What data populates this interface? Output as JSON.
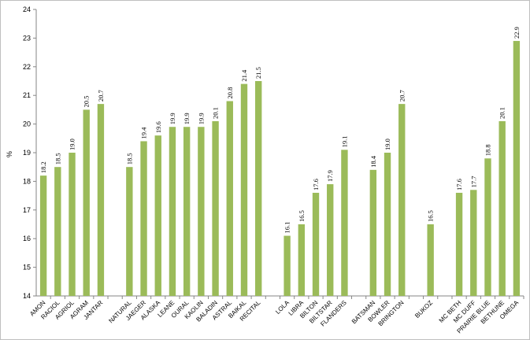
{
  "chart_data": {
    "type": "bar",
    "title": "",
    "xlabel": "",
    "ylabel": "%",
    "ylim": [
      14,
      24
    ],
    "yticks": [
      14,
      15,
      16,
      17,
      18,
      19,
      20,
      21,
      22,
      23,
      24
    ],
    "grid": false,
    "legend": "none",
    "bar_color": "#9bbb59",
    "groups": [
      {
        "categories": [
          "AMON",
          "RACIOL",
          "AGRIOL",
          "AGRAM",
          "JANTAR"
        ],
        "values": [
          18.2,
          18.5,
          19.0,
          20.5,
          20.7
        ],
        "labels": [
          "18.2",
          "18.5",
          "19.0",
          "20.5",
          "20.7"
        ]
      },
      {
        "categories": [
          "NATURAL",
          "JAEGER",
          "ALASKA",
          "LEANE",
          "OURAL",
          "KAOLIN",
          "BALADIN",
          "ASTRAL",
          "BAIKAL",
          "RECITAL"
        ],
        "values": [
          18.5,
          19.4,
          19.6,
          19.9,
          19.9,
          19.9,
          20.1,
          20.8,
          21.4,
          21.5
        ],
        "labels": [
          "18.5",
          "19.4",
          "19.6",
          "19.9",
          "19.9",
          "19.9",
          "20.1",
          "20.8",
          "21.4",
          "21.5"
        ]
      },
      {
        "categories": [
          "LOLA",
          "LIBRA",
          "BILTON",
          "BILTSTAR",
          "FLANDERS"
        ],
        "values": [
          16.1,
          16.5,
          17.6,
          17.9,
          19.1
        ],
        "labels": [
          "16.1",
          "16.5",
          "17.6",
          "17.9",
          "19.1"
        ]
      },
      {
        "categories": [
          "BATSMAN",
          "BOWLER",
          "BRINGTON"
        ],
        "values": [
          18.4,
          19.0,
          20.7
        ],
        "labels": [
          "18.4",
          "19.0",
          "20.7"
        ]
      },
      {
        "categories": [
          "BUKOZ"
        ],
        "values": [
          16.5
        ],
        "labels": [
          "16.5"
        ]
      },
      {
        "categories": [
          "MC BETH",
          "MC DUFF",
          "PRAIRIE BLUE",
          "BETHUNE",
          "OMEGA"
        ],
        "values": [
          17.6,
          17.7,
          18.8,
          20.1,
          22.9
        ],
        "labels": [
          "17.6",
          "17.7",
          "18.8",
          "20.1",
          "22.9"
        ]
      }
    ]
  }
}
